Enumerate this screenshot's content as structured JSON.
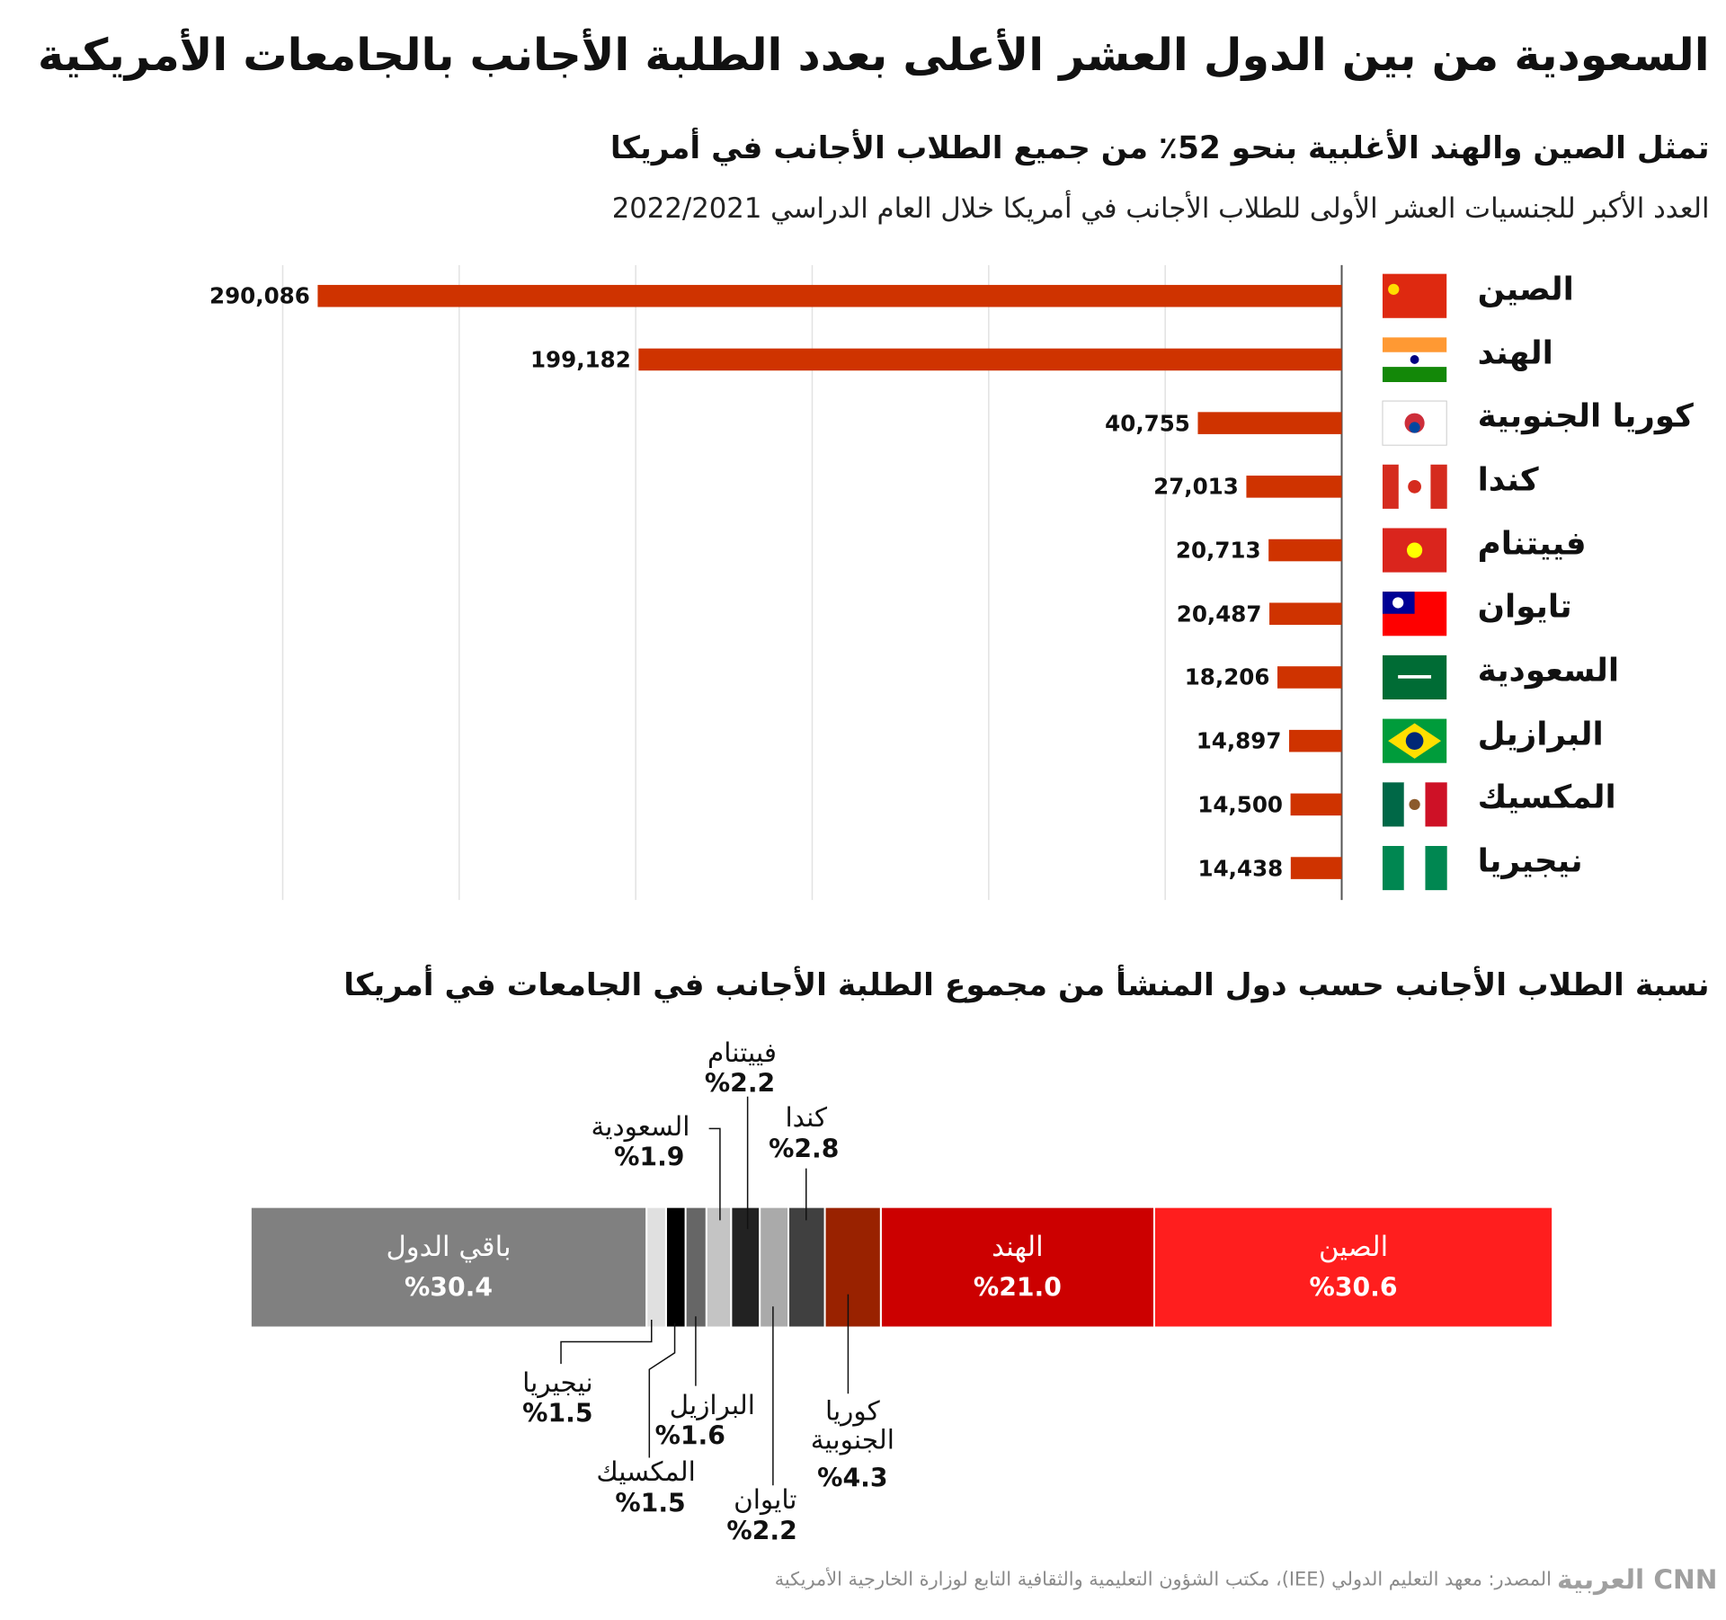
{
  "header": {
    "title": "السعودية من بين الدول العشر الأعلى بعدد الطلبة الأجانب بالجامعات الأمريكية"
  },
  "chart_data": [
    {
      "type": "bar",
      "orientation": "horizontal",
      "title": "تمثل الصين والهند الأغلبية بنحو 52٪ من جميع الطلاب الأجانب في أمريكا",
      "subtitle": "العدد الأكبر للجنسيات العشر الأولى للطلاب الأجانب في أمريكا خلال العام الدراسي 2022/2021",
      "categories": [
        "الصين",
        "الهند",
        "كوريا الجنوبية",
        "كندا",
        "فييتنام",
        "تايوان",
        "السعودية",
        "البرازيل",
        "المكسيك",
        "نيجيريا"
      ],
      "values": [
        290086,
        199182,
        40755,
        27013,
        20713,
        20487,
        18206,
        14897,
        14500,
        14438
      ],
      "value_labels": [
        "290,086",
        "199,182",
        "40,755",
        "27,013",
        "20,713",
        "20,487",
        "18,206",
        "14,897",
        "14,500",
        "14,438"
      ],
      "color": "#cf3300",
      "xlim": [
        0,
        300000
      ],
      "xticks": [
        0,
        50000,
        100000,
        150000,
        200000,
        250000,
        300000
      ],
      "grid": true
    },
    {
      "type": "stacked_bar",
      "orientation": "horizontal",
      "title": "نسبة الطلاب الأجانب حسب دول المنشأ من مجموع الطلبة الأجانب في الجامعات في أمريكا",
      "categories": [
        "الصين",
        "الهند",
        "كوريا الجنوبية",
        "كندا",
        "تايوان",
        "فييتنام",
        "السعودية",
        "البرازيل",
        "المكسيك",
        "نيجيريا",
        "باقي الدول"
      ],
      "values": [
        30.6,
        21.0,
        4.3,
        2.8,
        2.2,
        2.2,
        1.9,
        1.6,
        1.5,
        1.5,
        30.4
      ],
      "value_labels": [
        "%30.6",
        "%21.0",
        "%4.3",
        "%2.8",
        "%2.2",
        "%2.2",
        "%1.9",
        "%1.6",
        "%1.5",
        "%1.5",
        "%30.4"
      ],
      "colors": [
        "#ff1e1e",
        "#cc0000",
        "#992200",
        "#404040",
        "#aaaaaa",
        "#222222",
        "#c4c4c4",
        "#666666",
        "#000000",
        "#e0e0e0",
        "#808080"
      ],
      "xlim": [
        0,
        100
      ]
    }
  ],
  "footer": {
    "source": "المصدر: معهد التعليم الدولي (IEE)، مكتب الشؤون التعليمية والثقافية التابع لوزارة الخارجية الأمريكية",
    "logo": "العربية CNN"
  }
}
